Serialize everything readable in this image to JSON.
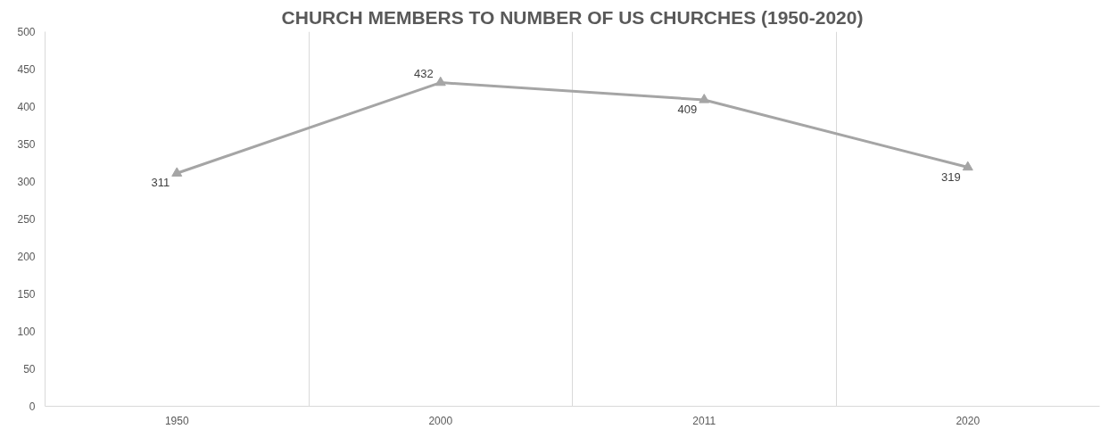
{
  "chart_data": {
    "type": "line",
    "title": "CHURCH MEMBERS TO NUMBER OF US CHURCHES (1950-2020)",
    "categories": [
      "1950",
      "2000",
      "2011",
      "2020"
    ],
    "values": [
      311,
      432,
      409,
      319
    ],
    "color": "#a5a5a5",
    "marker": "triangle",
    "line_style": "solid",
    "data_labels": true,
    "ylim": [
      0,
      500
    ],
    "yticks": [
      0,
      50,
      100,
      150,
      200,
      250,
      300,
      350,
      400,
      450,
      500
    ],
    "grid": "x"
  }
}
